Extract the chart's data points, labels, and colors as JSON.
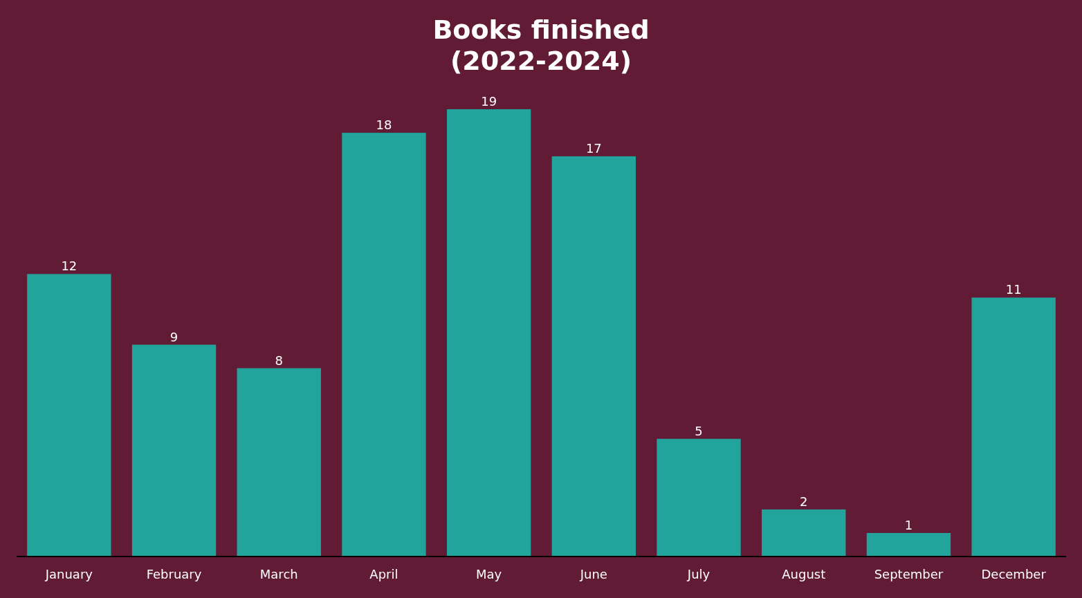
{
  "chart_data": {
    "type": "bar",
    "title": "Books finished\n(2022-2024)",
    "categories": [
      "January",
      "February",
      "March",
      "April",
      "May",
      "June",
      "July",
      "August",
      "September",
      "December"
    ],
    "values": [
      12,
      9,
      8,
      18,
      19,
      17,
      5,
      2,
      1,
      11
    ],
    "color": "#22a39b",
    "data_labels": true
  }
}
